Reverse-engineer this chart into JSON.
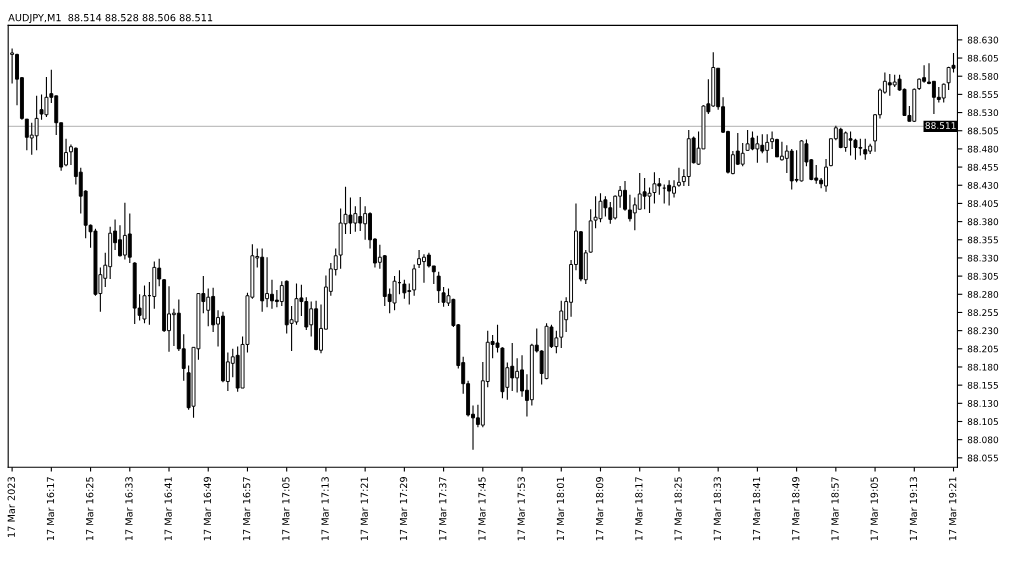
{
  "chart_data": {
    "type": "candlestick",
    "title": "AUDJPY,M1  88.514 88.528 88.506 88.511",
    "categories": [
      "17 Mar 2023",
      null,
      null,
      null,
      null,
      null,
      null,
      null,
      "17 Mar 16:17",
      null,
      null,
      null,
      null,
      null,
      null,
      null,
      "17 Mar 16:25",
      null,
      null,
      null,
      null,
      null,
      null,
      null,
      "17 Mar 16:33",
      null,
      null,
      null,
      null,
      null,
      null,
      null,
      "17 Mar 16:41",
      null,
      null,
      null,
      null,
      null,
      null,
      null,
      "17 Mar 16:49",
      null,
      null,
      null,
      null,
      null,
      null,
      null,
      "17 Mar 16:57",
      null,
      null,
      null,
      null,
      null,
      null,
      null,
      "17 Mar 17:05",
      null,
      null,
      null,
      null,
      null,
      null,
      null,
      "17 Mar 17:13",
      null,
      null,
      null,
      null,
      null,
      null,
      null,
      "17 Mar 17:21",
      null,
      null,
      null,
      null,
      null,
      null,
      null,
      "17 Mar 17:29",
      null,
      null,
      null,
      null,
      null,
      null,
      null,
      "17 Mar 17:37",
      null,
      null,
      null,
      null,
      null,
      null,
      null,
      "17 Mar 17:45",
      null,
      null,
      null,
      null,
      null,
      null,
      null,
      "17 Mar 17:53",
      null,
      null,
      null,
      null,
      null,
      null,
      null,
      "17 Mar 18:01",
      null,
      null,
      null,
      null,
      null,
      null,
      null,
      "17 Mar 18:09",
      null,
      null,
      null,
      null,
      null,
      null,
      null,
      "17 Mar 18:17",
      null,
      null,
      null,
      null,
      null,
      null,
      null,
      "17 Mar 18:25",
      null,
      null,
      null,
      null,
      null,
      null,
      null,
      "17 Mar 18:33",
      null,
      null,
      null,
      null,
      null,
      null,
      null,
      "17 Mar 18:41",
      null,
      null,
      null,
      null,
      null,
      null,
      null,
      "17 Mar 18:49",
      null,
      null,
      null,
      null,
      null,
      null,
      null,
      "17 Mar 18:57",
      null,
      null,
      null,
      null,
      null,
      null,
      null,
      "17 Mar 19:05",
      null,
      null,
      null,
      null,
      null,
      null,
      null,
      "17 Mar 19:13",
      null,
      null,
      null,
      null,
      null,
      null,
      null,
      "17 Mar 19:21"
    ],
    "ohlc": [
      [
        88.61,
        88.618,
        88.57,
        88.612
      ],
      [
        88.61,
        88.611,
        88.54,
        88.576
      ],
      [
        88.578,
        88.579,
        88.52,
        88.522
      ],
      [
        88.521,
        88.521,
        88.478,
        88.496
      ],
      [
        88.495,
        88.516,
        88.472,
        88.499
      ],
      [
        88.498,
        88.553,
        88.478,
        88.522
      ],
      [
        88.534,
        88.555,
        88.52,
        88.528
      ],
      [
        88.527,
        88.579,
        88.524,
        88.551
      ],
      [
        88.556,
        88.589,
        88.543,
        88.551
      ],
      [
        88.553,
        88.553,
        88.499,
        88.516
      ],
      [
        88.516,
        88.516,
        88.45,
        88.455
      ],
      [
        88.458,
        88.494,
        88.456,
        88.475
      ],
      [
        88.476,
        88.486,
        88.458,
        88.483
      ],
      [
        88.481,
        88.482,
        88.431,
        88.442
      ],
      [
        88.448,
        88.454,
        88.391,
        88.415
      ],
      [
        88.422,
        88.423,
        88.357,
        88.375
      ],
      [
        88.375,
        88.376,
        88.344,
        88.366
      ],
      [
        88.367,
        88.37,
        88.278,
        88.28
      ],
      [
        88.281,
        88.317,
        88.256,
        88.307
      ],
      [
        88.302,
        88.337,
        88.29,
        88.32
      ],
      [
        88.318,
        88.373,
        88.301,
        88.364
      ],
      [
        88.367,
        88.383,
        88.341,
        88.351
      ],
      [
        88.355,
        88.375,
        88.332,
        88.333
      ],
      [
        88.334,
        88.406,
        88.328,
        88.361
      ],
      [
        88.363,
        88.391,
        88.323,
        88.331
      ],
      [
        88.323,
        88.324,
        88.239,
        88.261
      ],
      [
        88.261,
        88.28,
        88.244,
        88.251
      ],
      [
        88.246,
        88.292,
        88.24,
        88.278
      ],
      [
        88.278,
        88.297,
        88.238,
        88.278
      ],
      [
        88.277,
        88.325,
        88.26,
        88.317
      ],
      [
        88.316,
        88.329,
        88.291,
        88.301
      ],
      [
        88.3,
        88.301,
        88.228,
        88.23
      ],
      [
        88.23,
        88.291,
        88.201,
        88.253
      ],
      [
        88.252,
        88.26,
        88.209,
        88.254
      ],
      [
        88.254,
        88.273,
        88.202,
        88.205
      ],
      [
        88.205,
        88.225,
        88.161,
        88.178
      ],
      [
        88.172,
        88.182,
        88.121,
        88.124
      ],
      [
        88.126,
        88.207,
        88.11,
        88.207
      ],
      [
        88.205,
        88.281,
        88.19,
        88.281
      ],
      [
        88.281,
        88.305,
        88.254,
        88.27
      ],
      [
        88.258,
        88.288,
        88.236,
        88.276
      ],
      [
        88.277,
        88.289,
        88.228,
        88.238
      ],
      [
        88.239,
        88.258,
        88.208,
        88.248
      ],
      [
        88.25,
        88.256,
        88.159,
        88.161
      ],
      [
        88.16,
        88.2,
        88.147,
        88.187
      ],
      [
        88.185,
        88.205,
        88.166,
        88.194
      ],
      [
        88.196,
        88.208,
        88.146,
        88.151
      ],
      [
        88.151,
        88.222,
        88.151,
        88.211
      ],
      [
        88.211,
        88.282,
        88.2,
        88.278
      ],
      [
        88.276,
        88.349,
        88.274,
        88.333
      ],
      [
        88.33,
        88.343,
        88.317,
        88.332
      ],
      [
        88.331,
        88.343,
        88.256,
        88.271
      ],
      [
        88.274,
        88.331,
        88.262,
        88.281
      ],
      [
        88.28,
        88.3,
        88.26,
        88.271
      ],
      [
        88.272,
        88.286,
        88.262,
        88.27
      ],
      [
        88.27,
        88.298,
        88.264,
        88.292
      ],
      [
        88.298,
        88.299,
        88.226,
        88.238
      ],
      [
        88.24,
        88.264,
        88.202,
        88.245
      ],
      [
        88.242,
        88.295,
        88.238,
        88.274
      ],
      [
        88.275,
        88.293,
        88.25,
        88.27
      ],
      [
        88.27,
        88.276,
        88.231,
        88.235
      ],
      [
        88.238,
        88.27,
        88.222,
        88.26
      ],
      [
        88.26,
        88.271,
        88.203,
        88.204
      ],
      [
        88.203,
        88.266,
        88.199,
        88.233
      ],
      [
        88.232,
        88.306,
        88.232,
        88.29
      ],
      [
        88.284,
        88.323,
        88.278,
        88.315
      ],
      [
        88.314,
        88.343,
        88.306,
        88.333
      ],
      [
        88.334,
        88.398,
        88.315,
        88.378
      ],
      [
        88.377,
        88.428,
        88.363,
        88.39
      ],
      [
        88.389,
        88.413,
        88.363,
        88.378
      ],
      [
        88.378,
        88.401,
        88.366,
        88.391
      ],
      [
        88.387,
        88.414,
        88.367,
        88.378
      ],
      [
        88.377,
        88.401,
        88.355,
        88.391
      ],
      [
        88.391,
        88.393,
        88.343,
        88.355
      ],
      [
        88.356,
        88.357,
        88.317,
        88.323
      ],
      [
        88.324,
        88.348,
        88.315,
        88.331
      ],
      [
        88.333,
        88.334,
        88.264,
        88.277
      ],
      [
        88.28,
        88.288,
        88.254,
        88.27
      ],
      [
        88.268,
        88.305,
        88.258,
        88.298
      ],
      [
        88.296,
        88.313,
        88.28,
        88.296
      ],
      [
        88.294,
        88.3,
        88.274,
        88.282
      ],
      [
        88.285,
        88.295,
        88.266,
        88.284
      ],
      [
        88.286,
        88.321,
        88.278,
        88.315
      ],
      [
        88.321,
        88.341,
        88.316,
        88.329
      ],
      [
        88.325,
        88.335,
        88.296,
        88.331
      ],
      [
        88.334,
        88.337,
        88.317,
        88.319
      ],
      [
        88.319,
        88.319,
        88.294,
        88.311
      ],
      [
        88.305,
        88.311,
        88.268,
        88.285
      ],
      [
        88.282,
        88.29,
        88.263,
        88.269
      ],
      [
        88.268,
        88.288,
        88.264,
        88.278
      ],
      [
        88.273,
        88.274,
        88.235,
        88.237
      ],
      [
        88.238,
        88.239,
        88.178,
        88.182
      ],
      [
        88.186,
        88.194,
        88.143,
        88.157
      ],
      [
        88.157,
        88.161,
        88.112,
        88.114
      ],
      [
        88.115,
        88.127,
        88.066,
        88.11
      ],
      [
        88.11,
        88.128,
        88.097,
        88.101
      ],
      [
        88.1,
        88.187,
        88.097,
        88.161
      ],
      [
        88.16,
        88.23,
        88.152,
        88.214
      ],
      [
        88.215,
        88.224,
        88.192,
        88.211
      ],
      [
        88.213,
        88.238,
        88.2,
        88.207
      ],
      [
        88.206,
        88.207,
        88.137,
        88.146
      ],
      [
        88.152,
        88.186,
        88.135,
        88.179
      ],
      [
        88.181,
        88.213,
        88.147,
        88.165
      ],
      [
        88.165,
        88.192,
        88.145,
        88.174
      ],
      [
        88.176,
        88.196,
        88.139,
        88.147
      ],
      [
        88.148,
        88.17,
        88.112,
        88.134
      ],
      [
        88.135,
        88.212,
        88.127,
        88.21
      ],
      [
        88.21,
        88.233,
        88.2,
        88.202
      ],
      [
        88.202,
        88.203,
        88.156,
        88.171
      ],
      [
        88.164,
        88.24,
        88.163,
        88.236
      ],
      [
        88.235,
        88.238,
        88.206,
        88.208
      ],
      [
        88.208,
        88.23,
        88.199,
        88.22
      ],
      [
        88.221,
        88.271,
        88.206,
        88.257
      ],
      [
        88.245,
        88.276,
        88.228,
        88.27
      ],
      [
        88.269,
        88.327,
        88.249,
        88.321
      ],
      [
        88.321,
        88.405,
        88.313,
        88.367
      ],
      [
        88.366,
        88.367,
        88.298,
        88.301
      ],
      [
        88.3,
        88.341,
        88.294,
        88.337
      ],
      [
        88.338,
        88.397,
        88.337,
        88.381
      ],
      [
        88.382,
        88.415,
        88.371,
        88.386
      ],
      [
        88.384,
        88.419,
        88.379,
        88.408
      ],
      [
        88.41,
        88.415,
        88.387,
        88.399
      ],
      [
        88.399,
        88.407,
        88.377,
        88.383
      ],
      [
        88.385,
        88.416,
        88.383,
        88.415
      ],
      [
        88.415,
        88.429,
        88.399,
        88.423
      ],
      [
        88.423,
        88.436,
        88.395,
        88.397
      ],
      [
        88.396,
        88.417,
        88.38,
        88.384
      ],
      [
        88.392,
        88.413,
        88.368,
        88.403
      ],
      [
        88.397,
        88.447,
        88.397,
        88.418
      ],
      [
        88.421,
        88.44,
        88.397,
        88.415
      ],
      [
        88.415,
        88.427,
        88.392,
        88.419
      ],
      [
        88.42,
        88.448,
        88.405,
        88.432
      ],
      [
        88.432,
        88.44,
        88.417,
        88.429
      ],
      [
        88.426,
        88.431,
        88.405,
        88.426
      ],
      [
        88.43,
        88.437,
        88.402,
        88.422
      ],
      [
        88.419,
        88.437,
        88.413,
        88.428
      ],
      [
        88.43,
        88.454,
        88.428,
        88.434
      ],
      [
        88.435,
        88.452,
        88.429,
        88.442
      ],
      [
        88.442,
        88.506,
        88.429,
        88.494
      ],
      [
        88.495,
        88.497,
        88.46,
        88.461
      ],
      [
        88.459,
        88.504,
        88.458,
        88.481
      ],
      [
        88.48,
        88.54,
        88.48,
        88.539
      ],
      [
        88.542,
        88.576,
        88.528,
        88.531
      ],
      [
        88.539,
        88.613,
        88.538,
        88.592
      ],
      [
        88.591,
        88.591,
        88.534,
        88.538
      ],
      [
        88.538,
        88.551,
        88.502,
        88.503
      ],
      [
        88.504,
        88.505,
        88.446,
        88.448
      ],
      [
        88.446,
        88.477,
        88.445,
        88.472
      ],
      [
        88.477,
        88.502,
        88.458,
        88.459
      ],
      [
        88.459,
        88.488,
        88.456,
        88.474
      ],
      [
        88.478,
        88.506,
        88.478,
        88.487
      ],
      [
        88.495,
        88.504,
        88.478,
        88.48
      ],
      [
        88.48,
        88.498,
        88.461,
        88.487
      ],
      [
        88.485,
        88.5,
        88.474,
        88.477
      ],
      [
        88.478,
        88.5,
        88.461,
        88.489
      ],
      [
        88.49,
        88.504,
        88.48,
        88.494
      ],
      [
        88.493,
        88.494,
        88.469,
        88.469
      ],
      [
        88.465,
        88.49,
        88.464,
        88.47
      ],
      [
        88.467,
        88.485,
        88.447,
        88.477
      ],
      [
        88.477,
        88.48,
        88.424,
        88.436
      ],
      [
        88.438,
        88.478,
        88.434,
        88.437
      ],
      [
        88.436,
        88.492,
        88.435,
        88.491
      ],
      [
        88.487,
        88.493,
        88.456,
        88.462
      ],
      [
        88.465,
        88.466,
        88.437,
        88.438
      ],
      [
        88.44,
        88.458,
        88.432,
        88.437
      ],
      [
        88.437,
        88.44,
        88.426,
        88.432
      ],
      [
        88.429,
        88.466,
        88.421,
        88.455
      ],
      [
        88.457,
        88.494,
        88.456,
        88.494
      ],
      [
        88.494,
        88.512,
        88.492,
        88.509
      ],
      [
        88.507,
        88.509,
        88.481,
        88.482
      ],
      [
        88.482,
        88.504,
        88.476,
        88.502
      ],
      [
        88.494,
        88.504,
        88.471,
        88.492
      ],
      [
        88.492,
        88.494,
        88.465,
        88.482
      ],
      [
        88.482,
        88.494,
        88.471,
        88.481
      ],
      [
        88.479,
        88.494,
        88.465,
        88.473
      ],
      [
        88.477,
        88.487,
        88.473,
        88.484
      ],
      [
        88.491,
        88.528,
        88.476,
        88.527
      ],
      [
        88.527,
        88.563,
        88.522,
        88.561
      ],
      [
        88.558,
        88.585,
        88.556,
        88.573
      ],
      [
        88.571,
        88.583,
        88.553,
        88.568
      ],
      [
        88.568,
        88.582,
        88.565,
        88.572
      ],
      [
        88.576,
        88.582,
        88.56,
        88.561
      ],
      [
        88.562,
        88.563,
        88.526,
        88.526
      ],
      [
        88.526,
        88.539,
        88.518,
        88.518
      ],
      [
        88.518,
        88.563,
        88.517,
        88.562
      ],
      [
        88.563,
        88.577,
        88.561,
        88.576
      ],
      [
        88.578,
        88.595,
        88.571,
        88.573
      ],
      [
        88.572,
        88.598,
        88.569,
        88.57
      ],
      [
        88.573,
        88.573,
        88.528,
        88.551
      ],
      [
        88.551,
        88.565,
        88.544,
        88.548
      ],
      [
        88.55,
        88.57,
        88.544,
        88.569
      ],
      [
        88.571,
        88.593,
        88.561,
        88.592
      ],
      [
        88.595,
        88.612,
        88.585,
        88.591
      ]
    ],
    "ylim": [
      88.042,
      88.65
    ],
    "yticks": [
      88.055,
      {
        "value": 88.08,
        "label": "88.080"
      },
      88.105,
      {
        "value": 88.13,
        "label": "88.130"
      },
      88.155,
      {
        "value": 88.18,
        "label": "88.180"
      },
      88.205,
      {
        "value": 88.23,
        "label": "88.230"
      },
      88.255,
      {
        "value": 88.28,
        "label": "88.280"
      },
      88.305,
      {
        "value": 88.33,
        "label": "88.330"
      },
      88.355,
      {
        "value": 88.38,
        "label": "88.380"
      },
      88.405,
      {
        "value": 88.43,
        "label": "88.430"
      },
      88.455,
      {
        "value": 88.48,
        "label": "88.480"
      },
      88.505,
      {
        "value": 88.53,
        "label": "88.530"
      },
      88.555,
      {
        "value": 88.58,
        "label": "88.580"
      },
      88.605,
      {
        "value": 88.63,
        "label": "88.630"
      }
    ],
    "ref_lines": [
      {
        "axis": "y",
        "value": 88.511,
        "label": "88.511",
        "color": "#c0c0c0"
      }
    ],
    "grid": false,
    "legend": false
  }
}
